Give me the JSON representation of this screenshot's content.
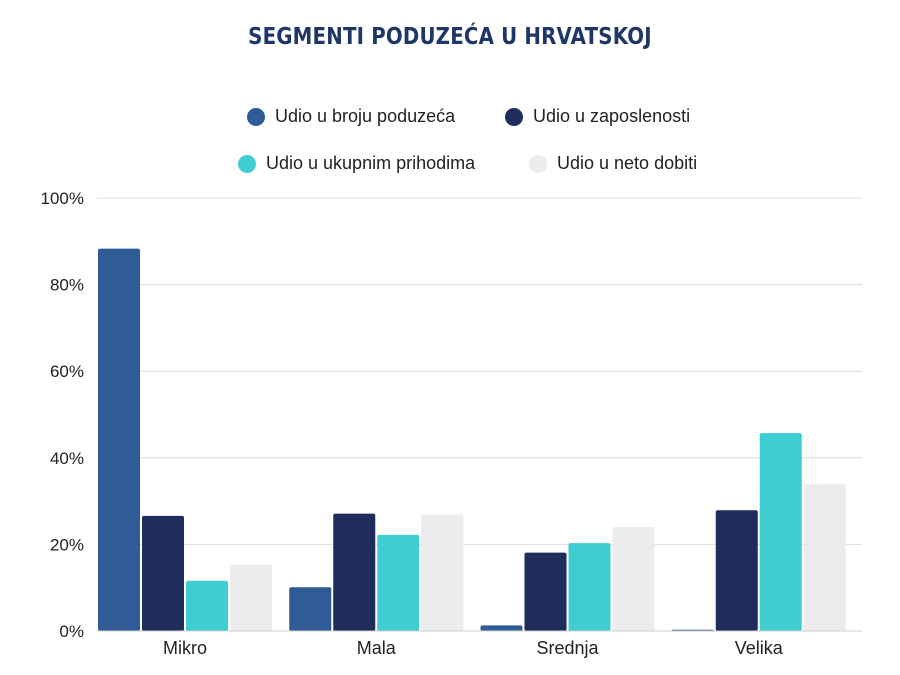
{
  "chart_data": {
    "type": "bar",
    "title": "SEGMENTI PODUZEĆA U HRVATSKOJ",
    "xlabel": "",
    "ylabel": "",
    "categories": [
      "Mikro",
      "Mala",
      "Srednja",
      "Velika"
    ],
    "series": [
      {
        "name": "Udio u broju poduzeća",
        "color": "#2f5c97",
        "values": [
          88.3,
          10.1,
          1.3,
          0.3
        ]
      },
      {
        "name": "Udio u zaposlenosti",
        "color": "#1e2d5c",
        "values": [
          26.6,
          27.1,
          18.1,
          27.9
        ]
      },
      {
        "name": "Udio u ukupnim prihodima",
        "color": "#3ecdd3",
        "values": [
          11.6,
          22.2,
          20.3,
          45.7
        ]
      },
      {
        "name": "Udio u neto dobiti",
        "color": "#ececee",
        "values": [
          15.3,
          26.9,
          24.0,
          33.9
        ]
      }
    ],
    "ylim": [
      0,
      100
    ],
    "yticks": [
      0,
      20,
      40,
      60,
      80,
      100
    ],
    "ytick_labels": [
      "0%",
      "20%",
      "40%",
      "60%",
      "80%",
      "100%"
    ],
    "grid": true,
    "legend_position": "top"
  }
}
